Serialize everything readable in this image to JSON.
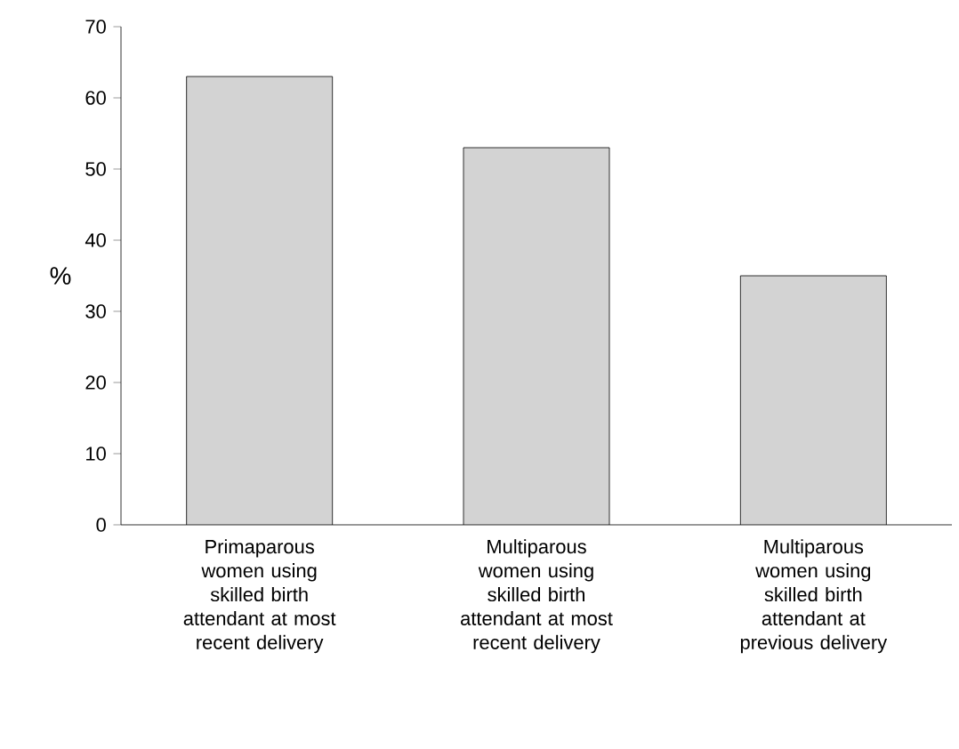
{
  "chart_data": {
    "type": "bar",
    "ylabel": "%",
    "categories": [
      "Primaparous women using skilled birth attendant at most recent delivery",
      "Multiparous women using skilled birth attendant at most recent delivery",
      "Multiparous women using skilled birth attendant at previous delivery"
    ],
    "values": [
      63,
      53,
      35
    ],
    "color": "#d3d3d3",
    "ylim": [
      0,
      70
    ],
    "yticks": [
      0,
      10,
      20,
      30,
      40,
      50,
      60,
      70
    ]
  }
}
